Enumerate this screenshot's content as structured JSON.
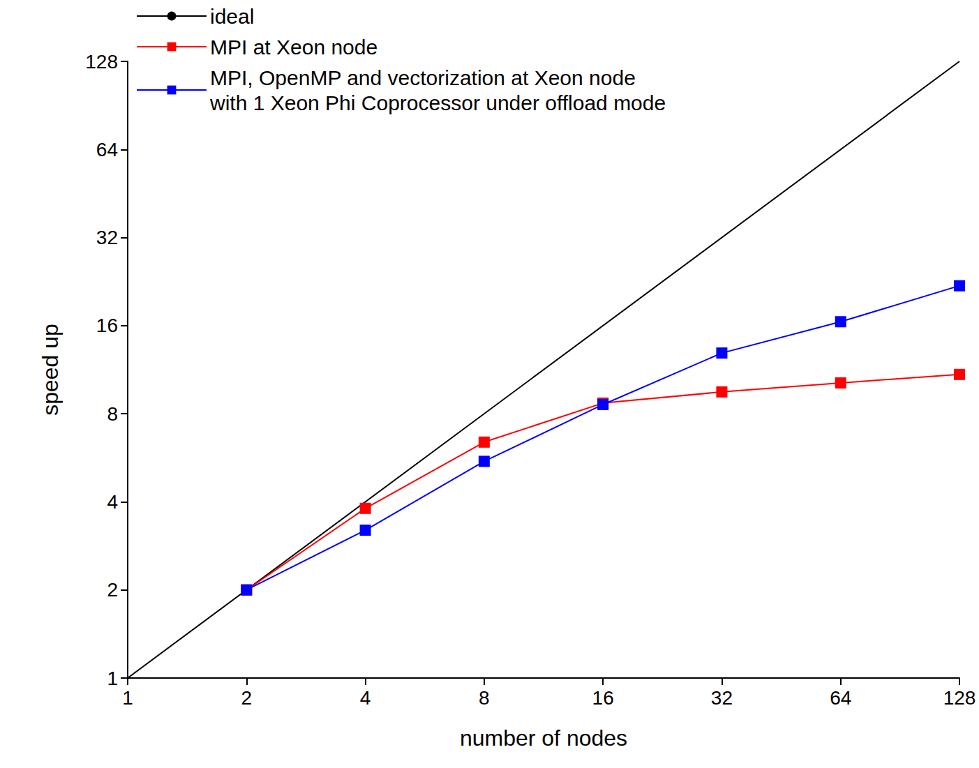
{
  "chart_data": {
    "type": "line",
    "log": true,
    "grid": false,
    "legend": "upper left",
    "xlabel": "number of nodes",
    "ylabel": "speed up",
    "xlim": [
      1,
      128
    ],
    "ylim": [
      1,
      128
    ],
    "xticks": [
      1,
      2,
      4,
      8,
      16,
      32,
      64,
      128
    ],
    "yticks": [
      1,
      2,
      4,
      8,
      16,
      32,
      64,
      128
    ],
    "series": [
      {
        "name": "ideal",
        "color": "#000000",
        "marker": "none",
        "line_style": "solid",
        "x": [
          1,
          128
        ],
        "values": [
          1,
          128
        ]
      },
      {
        "name": "MPI at Xeon node",
        "color": "#ff0000",
        "marker": "square",
        "line_style": "solid",
        "x": [
          2,
          4,
          8,
          16,
          32,
          64,
          128
        ],
        "values": [
          2,
          3.8,
          6.4,
          8.7,
          9.5,
          10.2,
          10.9
        ]
      },
      {
        "name": "MPI, OpenMP and vectorization at Xeon node\nwith 1 Xeon Phi Coprocessor under offload mode",
        "color": "#0000ff",
        "marker": "square",
        "line_style": "solid",
        "x": [
          2,
          4,
          8,
          16,
          32,
          64,
          128
        ],
        "values": [
          2,
          3.2,
          5.5,
          8.6,
          12.9,
          16.5,
          21.9
        ]
      }
    ]
  }
}
